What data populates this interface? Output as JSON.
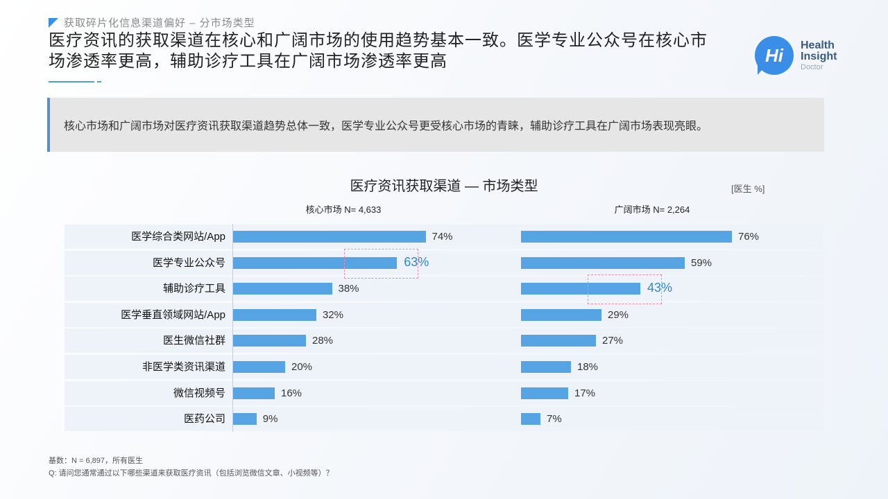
{
  "header": {
    "section_tag": "获取碎片化信息渠道偏好 – 分市场类型",
    "title_line1": "医疗资讯的获取渠道在核心和广阔市场的使用趋势基本一致。医学专业公众号在核心市",
    "title_line2": "场渗透率更高，辅助诊疗工具在广阔市场渗透率更高"
  },
  "logo": {
    "mark": "Hi",
    "line1": "Health",
    "line2": "Insight",
    "line3": "Doctor"
  },
  "summary": "核心市场和广阔市场对医疗资讯获取渠道趋势总体一致，医学专业公众号更受核心市场的青睐，辅助诊疗工具在广阔市场表现亮眼。",
  "chart_data": {
    "type": "bar",
    "orientation": "horizontal",
    "title": "医疗资讯获取渠道 — 市场类型",
    "unit": "[医生 %]",
    "categories": [
      "医学综合类网站/App",
      "医学专业公众号",
      "辅助诊疗工具",
      "医学垂直领域网站/App",
      "医生微信社群",
      "非医学类资讯渠道",
      "微信视频号",
      "医药公司"
    ],
    "series": [
      {
        "name": "核心市场 N= 4,633",
        "values": [
          74,
          63,
          38,
          32,
          28,
          20,
          16,
          9
        ],
        "labels": [
          "74%",
          "63%",
          "38%",
          "32%",
          "28%",
          "20%",
          "16%",
          "9%"
        ],
        "highlight_index": 1
      },
      {
        "name": "广阔市场 N= 2,264",
        "values": [
          76,
          59,
          43,
          29,
          27,
          18,
          17,
          7
        ],
        "labels": [
          "76%",
          "59%",
          "43%",
          "29%",
          "27%",
          "18%",
          "17%",
          "7%"
        ],
        "highlight_index": 2
      }
    ],
    "xlim": [
      0,
      100
    ],
    "bar_color": "#56a4e4",
    "highlight_color": "#2f86d6",
    "highlight_box_color": "#f08aa8"
  },
  "footnotes": {
    "base": "基数：N = 6,897，所有医生",
    "question": "Q: 请问您通常通过以下哪些渠道来获取医疗资讯（包括浏览微信文章、小视频等）？"
  }
}
